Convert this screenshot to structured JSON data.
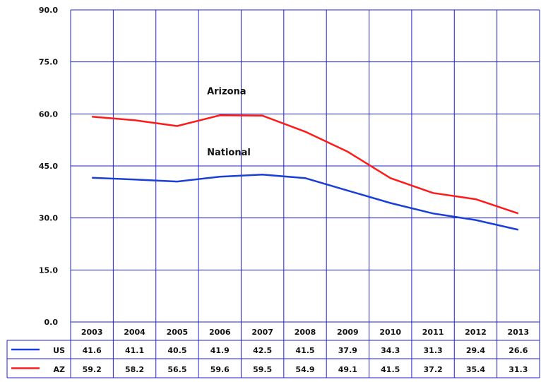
{
  "chart_data": {
    "type": "line",
    "title": "",
    "xlabel": "",
    "ylabel": "",
    "x": [
      "2003",
      "2004",
      "2005",
      "2006",
      "2007",
      "2008",
      "2009",
      "2010",
      "2011",
      "2012",
      "2013"
    ],
    "ylim": [
      0,
      90
    ],
    "yticks": [
      "0.0",
      "15.0",
      "30.0",
      "45.0",
      "60.0",
      "75.0",
      "90.0"
    ],
    "grid": true,
    "series": [
      {
        "name": "US",
        "color": "#1a3fd6",
        "values": [
          41.6,
          41.1,
          40.5,
          41.9,
          42.5,
          41.5,
          37.9,
          34.3,
          31.3,
          29.4,
          26.6
        ]
      },
      {
        "name": "AZ",
        "color": "#ff1a1a",
        "values": [
          59.2,
          58.2,
          56.5,
          59.6,
          59.5,
          54.9,
          49.1,
          41.5,
          37.2,
          35.4,
          31.3
        ]
      }
    ],
    "annotations": [
      {
        "text": "Arizona",
        "series": "AZ"
      },
      {
        "text": "National",
        "series": "US"
      }
    ],
    "data_table": {
      "rows": [
        {
          "label": "US",
          "series": "US",
          "values": [
            "41.6",
            "41.1",
            "40.5",
            "41.9",
            "42.5",
            "41.5",
            "37.9",
            "34.3",
            "31.3",
            "29.4",
            "26.6"
          ]
        },
        {
          "label": "AZ",
          "series": "AZ",
          "values": [
            "59.2",
            "58.2",
            "56.5",
            "59.6",
            "59.5",
            "54.9",
            "49.1",
            "41.5",
            "37.2",
            "35.4",
            "31.3"
          ]
        }
      ]
    }
  },
  "colors": {
    "grid": "#2222cc",
    "text": "#111111"
  }
}
